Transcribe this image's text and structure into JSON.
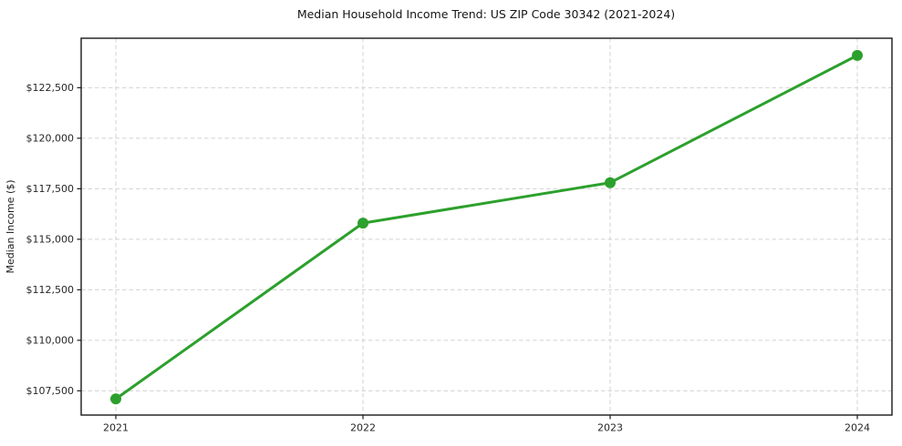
{
  "chart_data": {
    "type": "line",
    "title": "Median Household Income Trend: US ZIP Code 30342 (2021-2024)",
    "ylabel": "Median Income ($)",
    "xlabel": "",
    "x": [
      2021,
      2022,
      2023,
      2024
    ],
    "x_tick_labels": [
      "2021",
      "2022",
      "2023",
      "2024"
    ],
    "values": [
      107100,
      115800,
      117800,
      124100
    ],
    "y_ticks": [
      {
        "value": 107500,
        "label": "$107,500"
      },
      {
        "value": 110000,
        "label": "$110,000"
      },
      {
        "value": 112500,
        "label": "$112,500"
      },
      {
        "value": 115000,
        "label": "$115,000"
      },
      {
        "value": 117500,
        "label": "$117,500"
      },
      {
        "value": 120000,
        "label": "$120,000"
      },
      {
        "value": 122500,
        "label": "$122,500"
      }
    ],
    "ylim": [
      106300,
      124950
    ],
    "grid": {
      "visible": true,
      "style": "dashed",
      "color": "#d2d2d2"
    },
    "legend": {
      "visible": false
    },
    "line_color": "#2ca02c",
    "marker": {
      "shape": "circle",
      "color": "#2ca02c",
      "radius_px": 6
    },
    "background": "#ffffff"
  }
}
